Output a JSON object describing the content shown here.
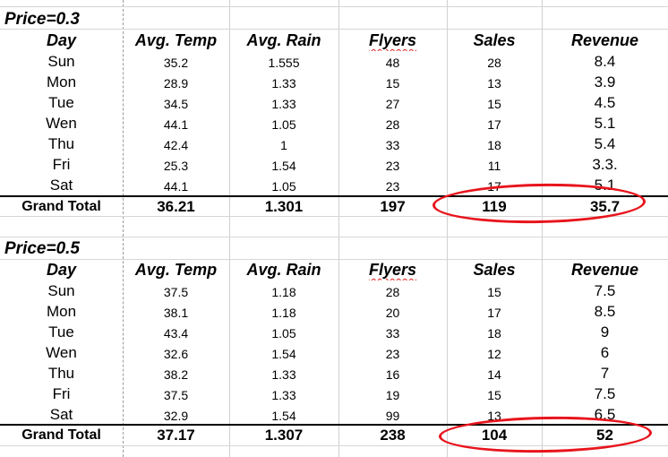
{
  "tables": [
    {
      "title": "Price=0.3",
      "headers": [
        "Day",
        "Avg. Temp",
        "Avg. Rain",
        "Flyers",
        "Sales",
        "Revenue"
      ],
      "rows": [
        [
          "Sun",
          "35.2",
          "1.555",
          "48",
          "28",
          "8.4"
        ],
        [
          "Mon",
          "28.9",
          "1.33",
          "15",
          "13",
          "3.9"
        ],
        [
          "Tue",
          "34.5",
          "1.33",
          "27",
          "15",
          "4.5"
        ],
        [
          "Wen",
          "44.1",
          "1.05",
          "28",
          "17",
          "5.1"
        ],
        [
          "Thu",
          "42.4",
          "1",
          "33",
          "18",
          "5.4"
        ],
        [
          "Fri",
          "25.3",
          "1.54",
          "23",
          "11",
          "3.3."
        ],
        [
          "Sat",
          "44.1",
          "1.05",
          "23",
          "17",
          "5.1"
        ]
      ],
      "total": [
        "Grand Total",
        "36.21",
        "1.301",
        "197",
        "119",
        "35.7"
      ]
    },
    {
      "title": "Price=0.5",
      "headers": [
        "Day",
        "Avg. Temp",
        "Avg. Rain",
        "Flyers",
        "Sales",
        "Revenue"
      ],
      "rows": [
        [
          "Sun",
          "37.5",
          "1.18",
          "28",
          "15",
          "7.5"
        ],
        [
          "Mon",
          "38.1",
          "1.18",
          "20",
          "17",
          "8.5"
        ],
        [
          "Tue",
          "43.4",
          "1.05",
          "33",
          "18",
          "9"
        ],
        [
          "Wen",
          "32.6",
          "1.54",
          "23",
          "12",
          "6"
        ],
        [
          "Thu",
          "38.2",
          "1.33",
          "16",
          "14",
          "7"
        ],
        [
          "Fri",
          "37.5",
          "1.33",
          "19",
          "15",
          "7.5"
        ],
        [
          "Sat",
          "32.9",
          "1.54",
          "99",
          "13",
          "6.5"
        ]
      ],
      "total": [
        "Grand Total",
        "37.17",
        "1.307",
        "238",
        "104",
        "52"
      ]
    }
  ],
  "highlight_color": "#e8141c"
}
